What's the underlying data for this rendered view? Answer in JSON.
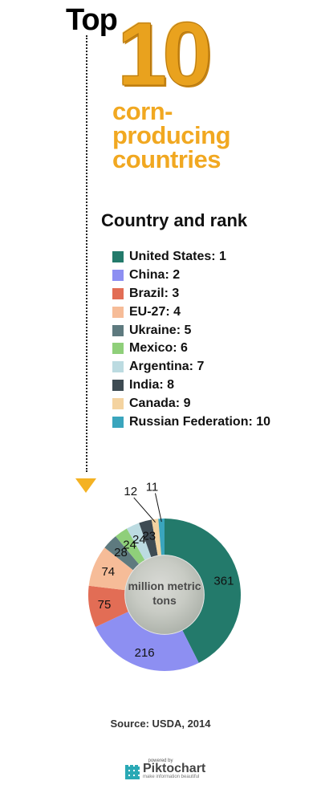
{
  "header": {
    "top_word": "Top",
    "big_number": "10",
    "subtitle_lines": [
      "corn-",
      "producing",
      "countries"
    ]
  },
  "legend": {
    "title": "Country and rank"
  },
  "chart_data": {
    "type": "pie",
    "donut": true,
    "center_label": [
      "million metric",
      "tons"
    ],
    "slices": [
      {
        "label": "United States: 1",
        "value": 361,
        "color": "#237a6b"
      },
      {
        "label": "China: 2",
        "value": 216,
        "color": "#8d8ff2"
      },
      {
        "label": "Brazil: 3",
        "value": 75,
        "color": "#e26d55"
      },
      {
        "label": "EU-27: 4",
        "value": 74,
        "color": "#f6bc98"
      },
      {
        "label": "Ukraine: 5",
        "value": 28,
        "color": "#5e7a7f"
      },
      {
        "label": "Mexico: 6",
        "value": 24,
        "color": "#8fcf7a"
      },
      {
        "label": "Argentina: 7",
        "value": 24,
        "color": "#bcdbe1"
      },
      {
        "label": "India: 8",
        "value": 23,
        "color": "#3e4b53"
      },
      {
        "label": "Canada: 9",
        "value": 12,
        "color": "#f4d3a0"
      },
      {
        "label": "Russian Federation: 10",
        "value": 11,
        "color": "#3aa5bd"
      }
    ]
  },
  "footer": {
    "source": "Source: USDA, 2014",
    "powered_by": "powered by",
    "brand": "Piktochart",
    "tagline": "make information beautiful"
  }
}
